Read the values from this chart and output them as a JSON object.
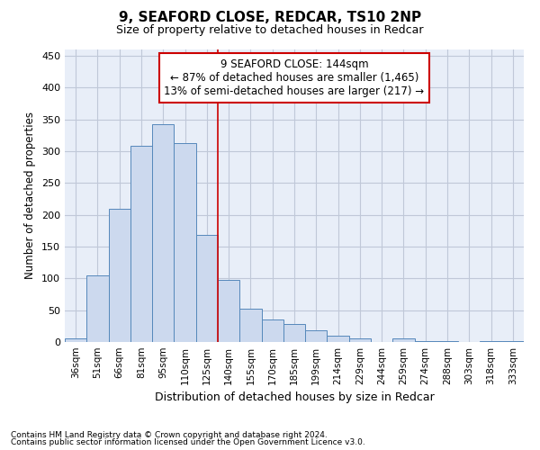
{
  "title": "9, SEAFORD CLOSE, REDCAR, TS10 2NP",
  "subtitle": "Size of property relative to detached houses in Redcar",
  "xlabel": "Distribution of detached houses by size in Redcar",
  "ylabel": "Number of detached properties",
  "categories": [
    "36sqm",
    "51sqm",
    "66sqm",
    "81sqm",
    "95sqm",
    "110sqm",
    "125sqm",
    "140sqm",
    "155sqm",
    "170sqm",
    "185sqm",
    "199sqm",
    "214sqm",
    "229sqm",
    "244sqm",
    "259sqm",
    "274sqm",
    "288sqm",
    "303sqm",
    "318sqm",
    "333sqm"
  ],
  "values": [
    5,
    105,
    210,
    308,
    342,
    313,
    168,
    97,
    53,
    35,
    29,
    18,
    10,
    5,
    0,
    5,
    2,
    2,
    0,
    2,
    1
  ],
  "bar_color": "#ccd9ee",
  "bar_edge_color": "#5588bb",
  "vline_x_index": 7,
  "vline_color": "#cc0000",
  "annotation_line1": "9 SEAFORD CLOSE: 144sqm",
  "annotation_line2": "← 87% of detached houses are smaller (1,465)",
  "annotation_line3": "13% of semi-detached houses are larger (217) →",
  "annotation_box_color": "#cc0000",
  "footer_line1": "Contains HM Land Registry data © Crown copyright and database right 2024.",
  "footer_line2": "Contains public sector information licensed under the Open Government Licence v3.0.",
  "ylim": [
    0,
    460
  ],
  "yticks": [
    0,
    50,
    100,
    150,
    200,
    250,
    300,
    350,
    400,
    450
  ],
  "background_color": "#ffffff",
  "plot_bg_color": "#e8eef8",
  "grid_color": "#c0c8d8"
}
